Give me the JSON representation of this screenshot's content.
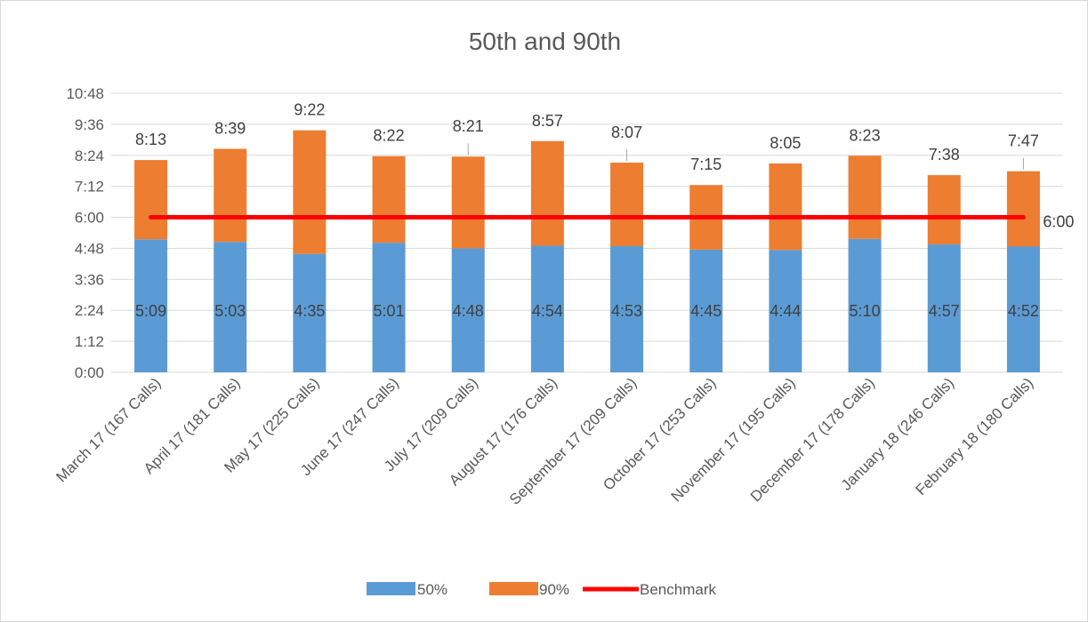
{
  "chart_data": {
    "type": "bar",
    "stacked": true,
    "title": "50th and 90th",
    "y_ticks": [
      "0:00",
      "1:12",
      "2:24",
      "3:36",
      "4:48",
      "6:00",
      "7:12",
      "8:24",
      "9:36",
      "10:48"
    ],
    "ylim_minutes": [
      0,
      648
    ],
    "categories": [
      "March 17 (167 Calls)",
      "April 17 (181 Calls)",
      "May 17 (225 Calls)",
      "June 17 (247 Calls)",
      "July 17 (209 Calls)",
      "August 17 (176 Calls)",
      "September 17 (209 Calls)",
      "October 17 (253 Calls)",
      "November 17 (195 Calls)",
      "December 17 (178 Calls)",
      "January 18 (246 Calls)",
      "February 18 (180 Calls)"
    ],
    "series": [
      {
        "name": "50%",
        "color": "#5b9bd5",
        "labels": [
          "5:09",
          "5:03",
          "4:35",
          "5:01",
          "4:48",
          "4:54",
          "4:53",
          "4:45",
          "4:44",
          "5:10",
          "4:57",
          "4:52"
        ],
        "values_seconds": [
          309,
          303,
          275,
          301,
          288,
          294,
          293,
          285,
          284,
          310,
          297,
          292
        ]
      },
      {
        "name": "90%",
        "color": "#ed7d31",
        "labels": [
          "8:13",
          "8:39",
          "9:22",
          "8:22",
          "8:21",
          "8:57",
          "8:07",
          "7:15",
          "8:05",
          "8:23",
          "7:38",
          "7:47"
        ],
        "values_seconds": [
          493,
          519,
          562,
          502,
          501,
          537,
          487,
          435,
          485,
          503,
          458,
          467
        ]
      },
      {
        "name": "Benchmark",
        "type": "line",
        "color": "#ff0000",
        "label": "6:00",
        "value_seconds": 360
      }
    ],
    "legend_position": "bottom",
    "grid": true
  }
}
